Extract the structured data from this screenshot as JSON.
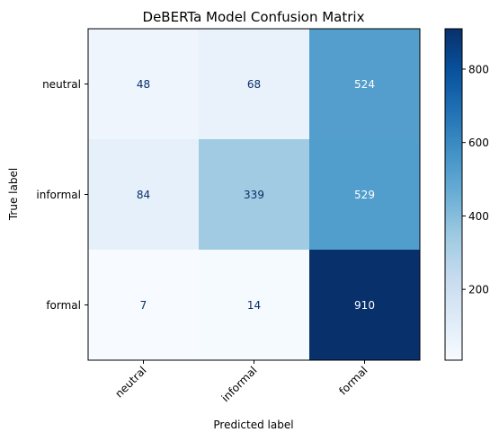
{
  "chart_data": {
    "type": "heatmap",
    "title": "DeBERTa Model Confusion Matrix",
    "xlabel": "Predicted label",
    "ylabel": "True label",
    "x_categories": [
      "neutral",
      "informal",
      "formal"
    ],
    "y_categories": [
      "neutral",
      "informal",
      "formal"
    ],
    "values": [
      [
        48,
        68,
        524
      ],
      [
        84,
        339,
        529
      ],
      [
        7,
        14,
        910
      ]
    ],
    "colormap": "Blues",
    "colorbar": {
      "range": [
        7,
        910
      ],
      "ticks": [
        200,
        400,
        600,
        800
      ]
    },
    "grid": false
  }
}
